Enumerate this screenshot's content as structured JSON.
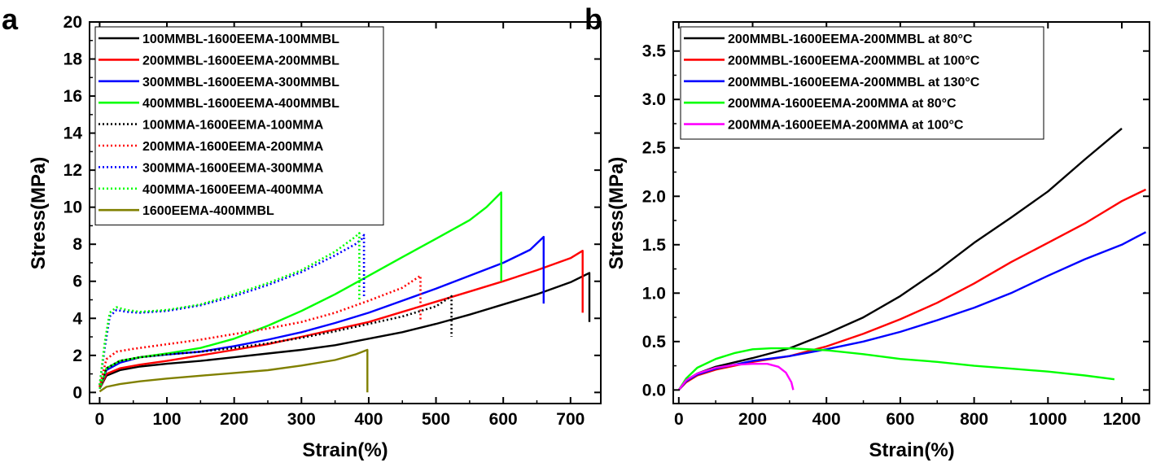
{
  "chart_data": [
    {
      "panel_label": "a",
      "type": "line",
      "xlabel": "Strain(%)",
      "ylabel": "Stress(MPa)",
      "xlim": [
        -15,
        745
      ],
      "ylim": [
        -0.6,
        20
      ],
      "xticks": [
        0,
        100,
        200,
        300,
        400,
        500,
        600,
        700
      ],
      "yticks": [
        0,
        2,
        4,
        6,
        8,
        10,
        12,
        14,
        16,
        18,
        20
      ],
      "legend_position": "top-left",
      "series": [
        {
          "name": "100MMBL-1600EEMA-100MMBL",
          "color": "#000000",
          "dash": "solid",
          "points": [
            [
              0,
              0.2
            ],
            [
              10,
              0.9
            ],
            [
              30,
              1.2
            ],
            [
              60,
              1.4
            ],
            [
              100,
              1.55
            ],
            [
              150,
              1.7
            ],
            [
              200,
              1.9
            ],
            [
              250,
              2.1
            ],
            [
              300,
              2.3
            ],
            [
              350,
              2.55
            ],
            [
              400,
              2.9
            ],
            [
              450,
              3.25
            ],
            [
              500,
              3.7
            ],
            [
              550,
              4.2
            ],
            [
              600,
              4.75
            ],
            [
              650,
              5.3
            ],
            [
              700,
              5.95
            ],
            [
              728,
              6.45
            ],
            [
              728,
              3.8
            ]
          ]
        },
        {
          "name": "200MMBL-1600EEMA-200MMBL",
          "color": "#ff0000",
          "dash": "solid",
          "points": [
            [
              0,
              0.2
            ],
            [
              10,
              1.0
            ],
            [
              30,
              1.3
            ],
            [
              60,
              1.5
            ],
            [
              100,
              1.7
            ],
            [
              150,
              2.0
            ],
            [
              200,
              2.3
            ],
            [
              250,
              2.6
            ],
            [
              300,
              3.0
            ],
            [
              350,
              3.4
            ],
            [
              400,
              3.8
            ],
            [
              450,
              4.35
            ],
            [
              500,
              4.9
            ],
            [
              550,
              5.45
            ],
            [
              600,
              6.0
            ],
            [
              650,
              6.6
            ],
            [
              700,
              7.25
            ],
            [
              718,
              7.65
            ],
            [
              718,
              4.3
            ]
          ]
        },
        {
          "name": "300MMBL-1600EEMA-300MMBL",
          "color": "#0000ff",
          "dash": "solid",
          "points": [
            [
              0,
              0.2
            ],
            [
              10,
              1.2
            ],
            [
              30,
              1.6
            ],
            [
              60,
              1.9
            ],
            [
              100,
              2.05
            ],
            [
              150,
              2.2
            ],
            [
              200,
              2.5
            ],
            [
              250,
              2.85
            ],
            [
              300,
              3.25
            ],
            [
              350,
              3.75
            ],
            [
              400,
              4.3
            ],
            [
              450,
              4.95
            ],
            [
              500,
              5.6
            ],
            [
              550,
              6.3
            ],
            [
              600,
              7.0
            ],
            [
              640,
              7.7
            ],
            [
              660,
              8.4
            ],
            [
              660,
              4.8
            ]
          ]
        },
        {
          "name": "400MMBL-1600EEMA-400MMBL",
          "color": "#00ff00",
          "dash": "solid",
          "points": [
            [
              0,
              0.2
            ],
            [
              10,
              1.3
            ],
            [
              30,
              1.7
            ],
            [
              60,
              1.9
            ],
            [
              100,
              2.1
            ],
            [
              150,
              2.4
            ],
            [
              200,
              2.9
            ],
            [
              250,
              3.6
            ],
            [
              300,
              4.4
            ],
            [
              350,
              5.3
            ],
            [
              400,
              6.3
            ],
            [
              450,
              7.3
            ],
            [
              500,
              8.3
            ],
            [
              550,
              9.3
            ],
            [
              575,
              10.0
            ],
            [
              597,
              10.8
            ],
            [
              597,
              6.0
            ]
          ]
        },
        {
          "name": "100MMA-1600EEMA-100MMA",
          "color": "#000000",
          "dash": "dotted",
          "points": [
            [
              0,
              0.3
            ],
            [
              10,
              1.3
            ],
            [
              30,
              1.7
            ],
            [
              60,
              1.9
            ],
            [
              100,
              2.05
            ],
            [
              150,
              2.2
            ],
            [
              200,
              2.4
            ],
            [
              250,
              2.65
            ],
            [
              300,
              2.95
            ],
            [
              350,
              3.3
            ],
            [
              400,
              3.7
            ],
            [
              450,
              4.1
            ],
            [
              500,
              4.65
            ],
            [
              523,
              5.2
            ],
            [
              523,
              3.0
            ]
          ]
        },
        {
          "name": "200MMA-1600EEMA-200MMA",
          "color": "#ff0000",
          "dash": "dotted",
          "points": [
            [
              0,
              0.3
            ],
            [
              10,
              1.8
            ],
            [
              25,
              2.2
            ],
            [
              50,
              2.35
            ],
            [
              100,
              2.6
            ],
            [
              150,
              2.85
            ],
            [
              200,
              3.15
            ],
            [
              250,
              3.45
            ],
            [
              300,
              3.8
            ],
            [
              350,
              4.3
            ],
            [
              400,
              4.95
            ],
            [
              450,
              5.65
            ],
            [
              477,
              6.3
            ],
            [
              477,
              3.9
            ]
          ]
        },
        {
          "name": "300MMA-1600EEMA-300MMA",
          "color": "#0000ff",
          "dash": "dotted",
          "points": [
            [
              0,
              0.4
            ],
            [
              8,
              2.5
            ],
            [
              15,
              4.1
            ],
            [
              25,
              4.45
            ],
            [
              40,
              4.35
            ],
            [
              60,
              4.3
            ],
            [
              100,
              4.4
            ],
            [
              150,
              4.7
            ],
            [
              200,
              5.2
            ],
            [
              250,
              5.8
            ],
            [
              300,
              6.5
            ],
            [
              350,
              7.4
            ],
            [
              380,
              8.0
            ],
            [
              390,
              8.3
            ],
            [
              393,
              8.5
            ],
            [
              393,
              5.2
            ]
          ]
        },
        {
          "name": "400MMA-1600EEMA-400MMA",
          "color": "#00ff00",
          "dash": "dotted",
          "points": [
            [
              0,
              0.4
            ],
            [
              8,
              2.8
            ],
            [
              15,
              4.3
            ],
            [
              25,
              4.6
            ],
            [
              40,
              4.45
            ],
            [
              60,
              4.35
            ],
            [
              100,
              4.45
            ],
            [
              150,
              4.75
            ],
            [
              200,
              5.3
            ],
            [
              250,
              5.9
            ],
            [
              300,
              6.6
            ],
            [
              350,
              7.6
            ],
            [
              380,
              8.4
            ],
            [
              386,
              8.6
            ],
            [
              386,
              5.0
            ]
          ]
        },
        {
          "name": "1600EEMA-400MMBL",
          "color": "#808000",
          "dash": "solid",
          "points": [
            [
              0,
              0.05
            ],
            [
              10,
              0.3
            ],
            [
              30,
              0.45
            ],
            [
              60,
              0.6
            ],
            [
              100,
              0.75
            ],
            [
              150,
              0.9
            ],
            [
              200,
              1.05
            ],
            [
              250,
              1.2
            ],
            [
              300,
              1.45
            ],
            [
              350,
              1.75
            ],
            [
              380,
              2.05
            ],
            [
              398,
              2.3
            ],
            [
              398,
              0.0
            ]
          ]
        }
      ]
    },
    {
      "panel_label": "b",
      "type": "line",
      "xlabel": "Strain(%)",
      "ylabel": "Stress(MPa)",
      "xlim": [
        -15,
        1275
      ],
      "ylim": [
        -0.14,
        3.8
      ],
      "xticks": [
        0,
        200,
        400,
        600,
        800,
        1000,
        1200
      ],
      "yticks": [
        0.0,
        0.5,
        1.0,
        1.5,
        2.0,
        2.5,
        3.0,
        3.5
      ],
      "ytick_labels": [
        "0.0",
        "0.5",
        "1.0",
        "1.5",
        "2.0",
        "2.5",
        "3.0",
        "3.5"
      ],
      "legend_position": "top-left",
      "series": [
        {
          "name": "200MMBL-1600EEMA-200MMBL at 80°C",
          "color": "#000000",
          "dash": "solid",
          "points": [
            [
              0,
              0.0
            ],
            [
              20,
              0.1
            ],
            [
              50,
              0.17
            ],
            [
              100,
              0.24
            ],
            [
              200,
              0.33
            ],
            [
              300,
              0.43
            ],
            [
              400,
              0.58
            ],
            [
              500,
              0.75
            ],
            [
              600,
              0.97
            ],
            [
              700,
              1.23
            ],
            [
              800,
              1.52
            ],
            [
              900,
              1.78
            ],
            [
              1000,
              2.05
            ],
            [
              1100,
              2.38
            ],
            [
              1200,
              2.7
            ]
          ]
        },
        {
          "name": "200MMBL-1600EEMA-200MMBL at 100°C",
          "color": "#ff0000",
          "dash": "solid",
          "points": [
            [
              0,
              0.0
            ],
            [
              20,
              0.08
            ],
            [
              50,
              0.15
            ],
            [
              100,
              0.21
            ],
            [
              200,
              0.29
            ],
            [
              300,
              0.35
            ],
            [
              400,
              0.45
            ],
            [
              500,
              0.58
            ],
            [
              600,
              0.73
            ],
            [
              700,
              0.9
            ],
            [
              800,
              1.1
            ],
            [
              900,
              1.32
            ],
            [
              1000,
              1.52
            ],
            [
              1100,
              1.72
            ],
            [
              1200,
              1.95
            ],
            [
              1265,
              2.07
            ]
          ]
        },
        {
          "name": "200MMBL-1600EEMA-200MMBL at 130°C",
          "color": "#0000ff",
          "dash": "solid",
          "points": [
            [
              0,
              0.0
            ],
            [
              20,
              0.09
            ],
            [
              50,
              0.16
            ],
            [
              100,
              0.22
            ],
            [
              200,
              0.3
            ],
            [
              300,
              0.35
            ],
            [
              400,
              0.42
            ],
            [
              500,
              0.5
            ],
            [
              600,
              0.6
            ],
            [
              700,
              0.72
            ],
            [
              800,
              0.85
            ],
            [
              900,
              1.0
            ],
            [
              1000,
              1.18
            ],
            [
              1100,
              1.35
            ],
            [
              1200,
              1.5
            ],
            [
              1265,
              1.63
            ]
          ]
        },
        {
          "name": "200MMA-1600EEMA-200MMA at 80°C",
          "color": "#00ff00",
          "dash": "solid",
          "points": [
            [
              0,
              0.0
            ],
            [
              20,
              0.12
            ],
            [
              50,
              0.23
            ],
            [
              100,
              0.32
            ],
            [
              150,
              0.38
            ],
            [
              200,
              0.42
            ],
            [
              250,
              0.43
            ],
            [
              300,
              0.43
            ],
            [
              400,
              0.41
            ],
            [
              500,
              0.37
            ],
            [
              600,
              0.32
            ],
            [
              700,
              0.29
            ],
            [
              800,
              0.25
            ],
            [
              900,
              0.22
            ],
            [
              1000,
              0.19
            ],
            [
              1100,
              0.15
            ],
            [
              1180,
              0.11
            ]
          ]
        },
        {
          "name": "200MMA-1600EEMA-200MMA at 100°C",
          "color": "#ff00ff",
          "dash": "solid",
          "points": [
            [
              0,
              0.0
            ],
            [
              20,
              0.1
            ],
            [
              50,
              0.17
            ],
            [
              100,
              0.23
            ],
            [
              150,
              0.26
            ],
            [
              200,
              0.27
            ],
            [
              240,
              0.27
            ],
            [
              270,
              0.24
            ],
            [
              290,
              0.18
            ],
            [
              305,
              0.08
            ],
            [
              310,
              0.0
            ]
          ]
        }
      ]
    }
  ]
}
